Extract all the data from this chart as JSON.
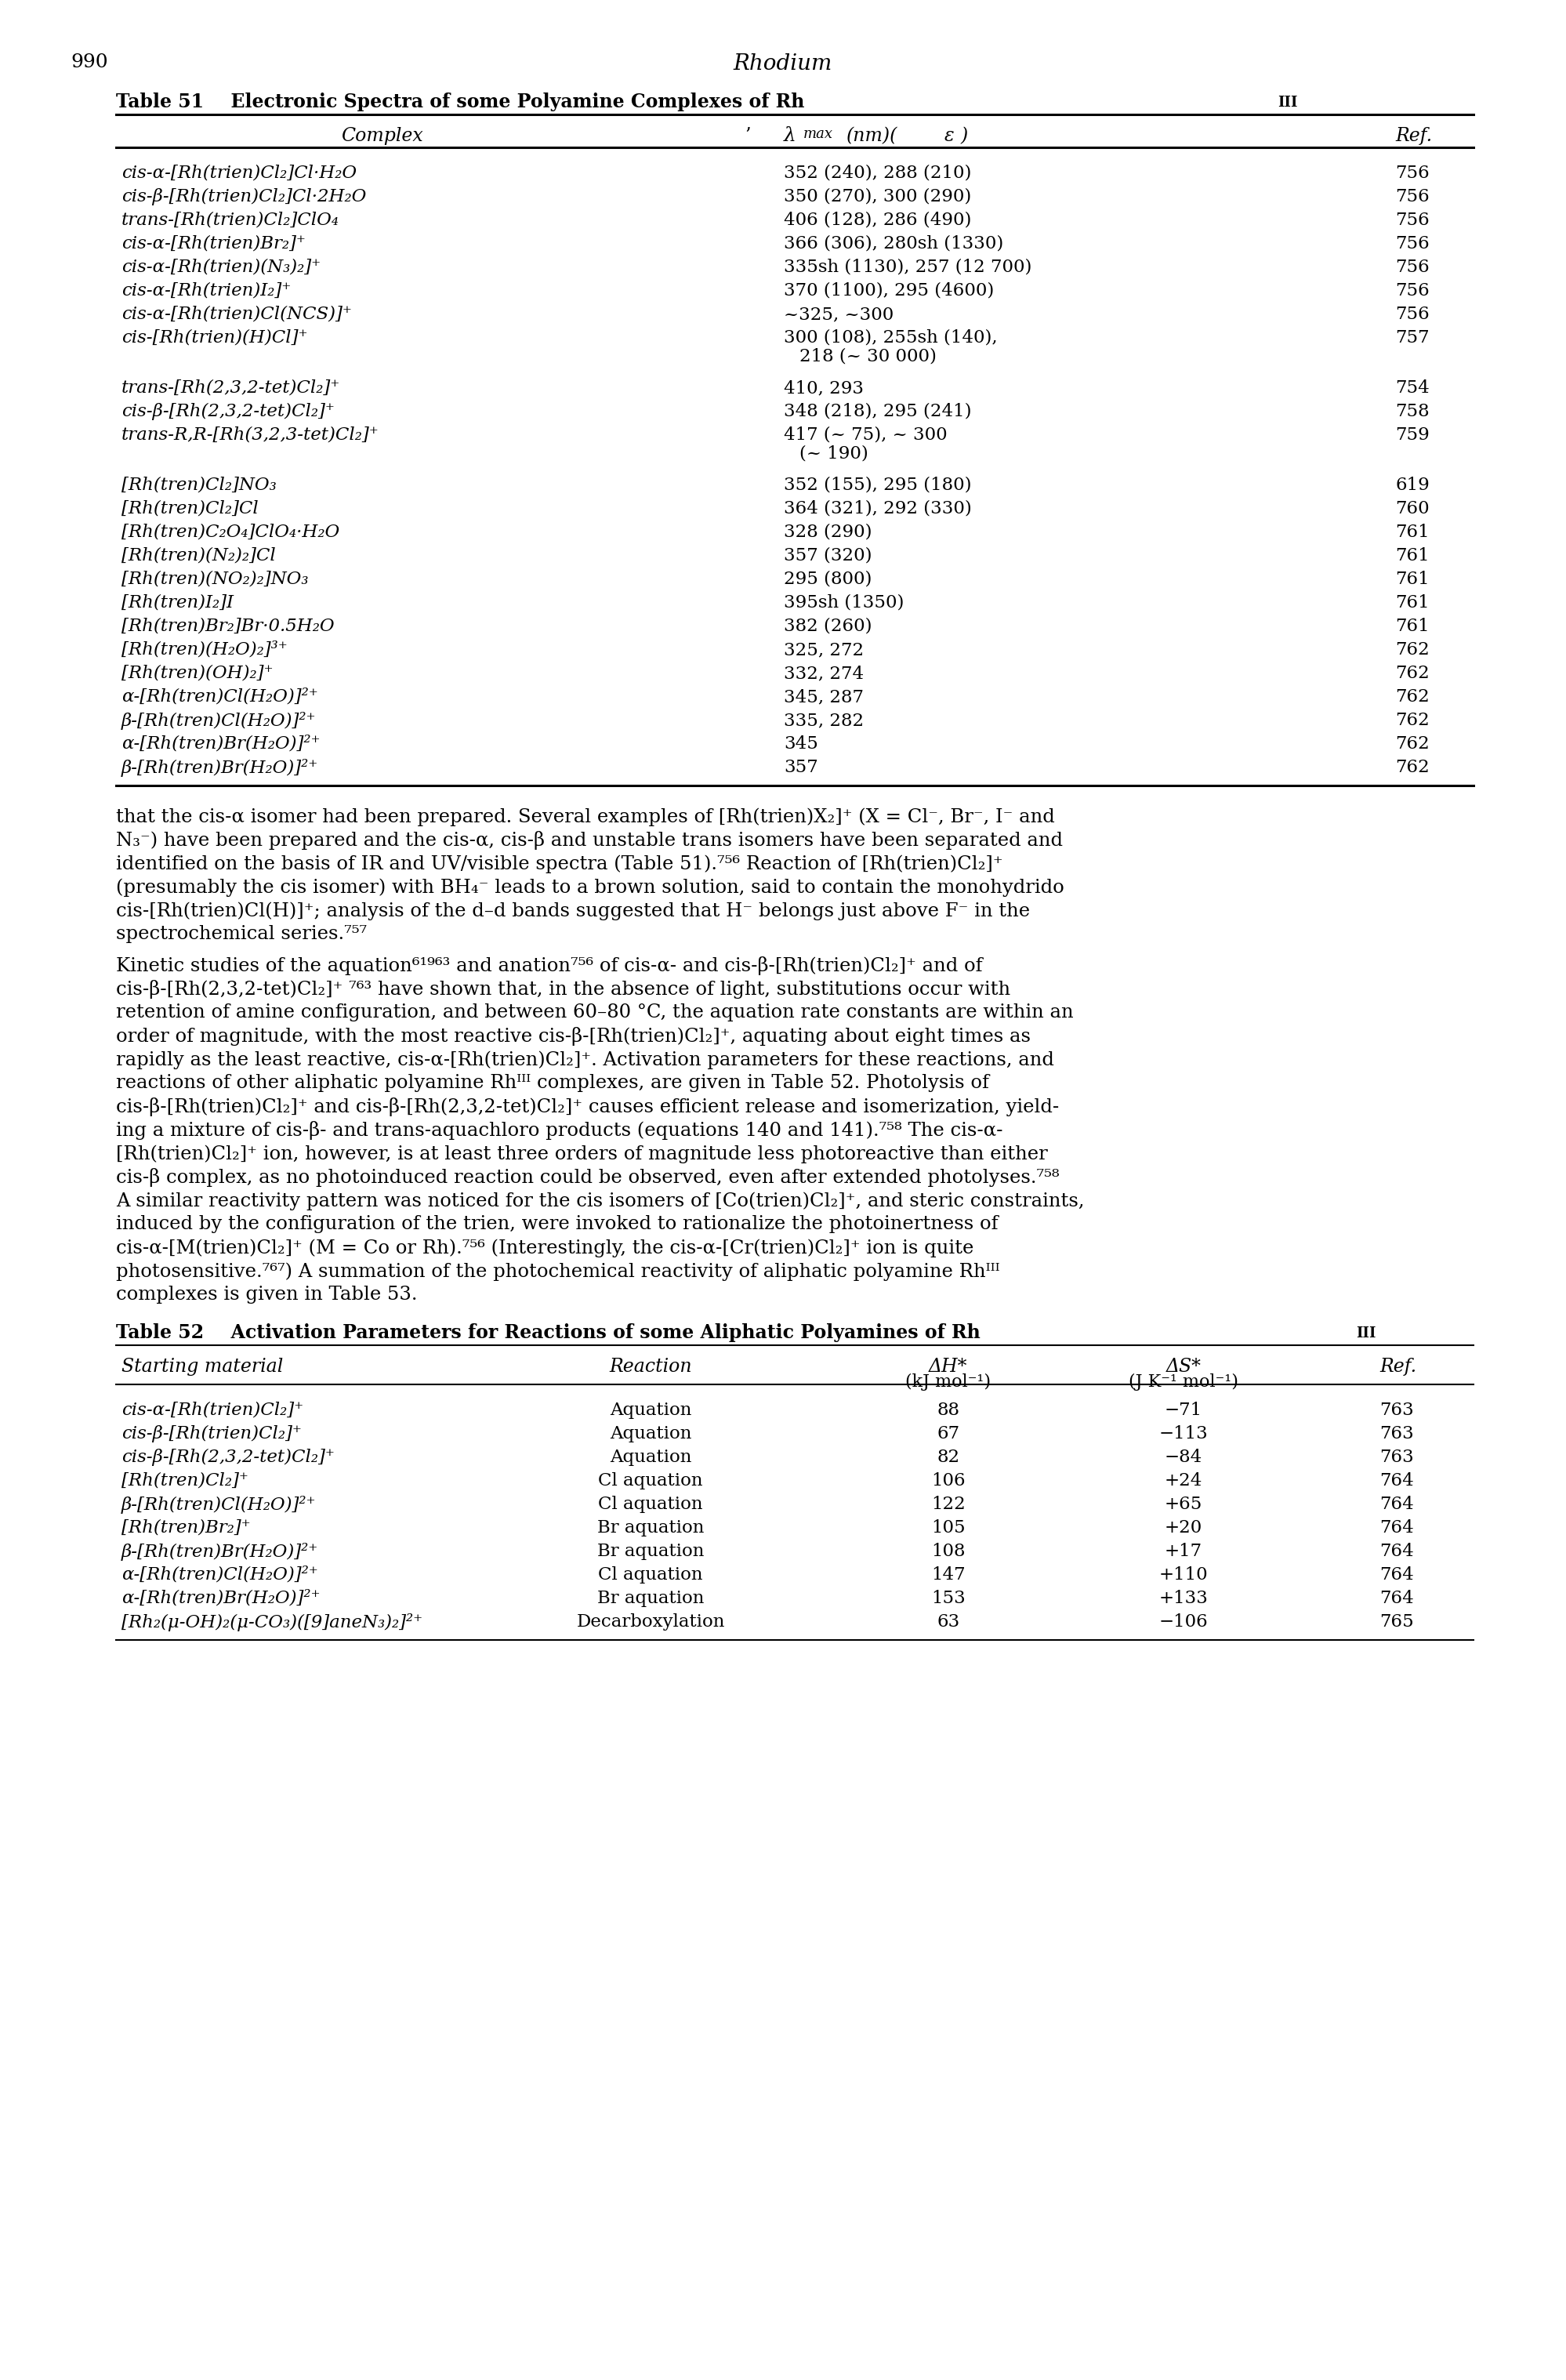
{
  "page_number": "990",
  "page_title": "Rhodium",
  "table51_rows": [
    [
      "cis-α-[Rh(trien)Cl₂]Cl·H₂O",
      "352 (240), 288 (210)",
      "756"
    ],
    [
      "cis-β-[Rh(trien)Cl₂]Cl·2H₂O",
      "350 (270), 300 (290)",
      "756"
    ],
    [
      "trans-[Rh(trien)Cl₂]ClO₄",
      "406 (128), 286 (490)",
      "756"
    ],
    [
      "cis-α-[Rh(trien)Br₂]⁺",
      "366 (306), 280sh (1330)",
      "756"
    ],
    [
      "cis-α-[Rh(trien)(N₃)₂]⁺",
      "335sh (1130), 257 (12 700)",
      "756"
    ],
    [
      "cis-α-[Rh(trien)I₂]⁺",
      "370 (1100), 295 (4600)",
      "756"
    ],
    [
      "cis-α-[Rh(trien)Cl(NCS)]⁺",
      "~325, ~300",
      "756"
    ],
    [
      "cis-[Rh(trien)(H)Cl]⁺",
      "300 (108), 255sh (140),\n218 (~ 30 000)",
      "757"
    ],
    [
      "trans-[Rh(2,3,2-tet)Cl₂]⁺",
      "410, 293",
      "754"
    ],
    [
      "cis-β-[Rh(2,3,2-tet)Cl₂]⁺",
      "348 (218), 295 (241)",
      "758"
    ],
    [
      "trans-R,R-[Rh(3,2,3-tet)Cl₂]⁺",
      "417 (~ 75), ~ 300\n(~ 190)",
      "759"
    ],
    [
      "[Rh(tren)Cl₂]NO₃",
      "352 (155), 295 (180)",
      "619"
    ],
    [
      "[Rh(tren)Cl₂]Cl",
      "364 (321), 292 (330)",
      "760"
    ],
    [
      "[Rh(tren)C₂O₄]ClO₄·H₂O",
      "328 (290)",
      "761"
    ],
    [
      "[Rh(tren)(N₂)₂]Cl",
      "357 (320)",
      "761"
    ],
    [
      "[Rh(tren)(NO₂)₂]NO₃",
      "295 (800)",
      "761"
    ],
    [
      "[Rh(tren)I₂]I",
      "395sh (1350)",
      "761"
    ],
    [
      "[Rh(tren)Br₂]Br·0.5H₂O",
      "382 (260)",
      "761"
    ],
    [
      "[Rh(tren)(H₂O)₂]³⁺",
      "325, 272",
      "762"
    ],
    [
      "[Rh(tren)(OH)₂]⁺",
      "332, 274",
      "762"
    ],
    [
      "α-[Rh(tren)Cl(H₂O)]²⁺",
      "345, 287",
      "762"
    ],
    [
      "β-[Rh(tren)Cl(H₂O)]²⁺",
      "335, 282",
      "762"
    ],
    [
      "α-[Rh(tren)Br(H₂O)]²⁺",
      "345",
      "762"
    ],
    [
      "β-[Rh(tren)Br(H₂O)]²⁺",
      "357",
      "762"
    ]
  ],
  "body_text1": [
    "that the cis-α isomer had been prepared. Several examples of [Rh(trien)X₂]⁺ (X = Cl⁻, Br⁻, I⁻ and",
    "N₃⁻) have been prepared and the cis-α, cis-β and unstable trans isomers have been separated and",
    "identified on the basis of IR and UV/visible spectra (Table 51).⁷⁵⁶ Reaction of [Rh(trien)Cl₂]⁺",
    "(presumably the cis isomer) with BH₄⁻ leads to a brown solution, said to contain the monohydrido",
    "cis-[Rh(trien)Cl(H)]⁺; analysis of the d–d bands suggested that H⁻ belongs just above F⁻ in the",
    "spectrochemical series.⁷⁵⁷"
  ],
  "body_text2": [
    "Kinetic studies of the aquation⁶¹⁹⁶³ and anation⁷⁵⁶ of cis-α- and cis-β-[Rh(trien)Cl₂]⁺ and of",
    "cis-β-[Rh(2,3,2-tet)Cl₂]⁺ ⁷⁶³ have shown that, in the absence of light, substitutions occur with",
    "retention of amine configuration, and between 60–80 °C, the aquation rate constants are within an",
    "order of magnitude, with the most reactive cis-β-[Rh(trien)Cl₂]⁺, aquating about eight times as",
    "rapidly as the least reactive, cis-α-[Rh(trien)Cl₂]⁺. Activation parameters for these reactions, and",
    "reactions of other aliphatic polyamine Rhᴵᴵᴵ complexes, are given in Table 52. Photolysis of",
    "cis-β-[Rh(trien)Cl₂]⁺ and cis-β-[Rh(2,3,2-tet)Cl₂]⁺ causes efficient release and isomerization, yield-",
    "ing a mixture of cis-β- and trans-aquachloro products (equations 140 and 141).⁷⁵⁸ The cis-α-",
    "[Rh(trien)Cl₂]⁺ ion, however, is at least three orders of magnitude less photoreactive than either",
    "cis-β complex, as no photoinduced reaction could be observed, even after extended photolyses.⁷⁵⁸",
    "A similar reactivity pattern was noticed for the cis isomers of [Co(trien)Cl₂]⁺, and steric constraints,",
    "induced by the configuration of the trien, were invoked to rationalize the photoinertness of",
    "cis-α-[M(trien)Cl₂]⁺ (M = Co or Rh).⁷⁵⁶ (Interestingly, the cis-α-[Cr(trien)Cl₂]⁺ ion is quite",
    "photosensitive.⁷⁶⁷) A summation of the photochemical reactivity of aliphatic polyamine Rhᴵᴵᴵ",
    "complexes is given in Table 53."
  ],
  "table52_rows": [
    [
      "cis-α-[Rh(trien)Cl₂]⁺",
      "Aquation",
      "88",
      "−71",
      "763"
    ],
    [
      "cis-β-[Rh(trien)Cl₂]⁺",
      "Aquation",
      "67",
      "−113",
      "763"
    ],
    [
      "cis-β-[Rh(2,3,2-tet)Cl₂]⁺",
      "Aquation",
      "82",
      "−84",
      "763"
    ],
    [
      "[Rh(tren)Cl₂]⁺",
      "Cl aquation",
      "106",
      "+24",
      "764"
    ],
    [
      "β-[Rh(tren)Cl(H₂O)]²⁺",
      "Cl aquation",
      "122",
      "+65",
      "764"
    ],
    [
      "[Rh(tren)Br₂]⁺",
      "Br aquation",
      "105",
      "+20",
      "764"
    ],
    [
      "β-[Rh(tren)Br(H₂O)]²⁺",
      "Br aquation",
      "108",
      "+17",
      "764"
    ],
    [
      "α-[Rh(tren)Cl(H₂O)]²⁺",
      "Cl aquation",
      "147",
      "+110",
      "764"
    ],
    [
      "α-[Rh(tren)Br(H₂O)]²⁺",
      "Br aquation",
      "153",
      "+133",
      "764"
    ],
    [
      "[Rh₂(μ-OH)₂(μ-CO₃)([9]aneN₃)₂]²⁺",
      "Decarboxylation",
      "63",
      "−106",
      "765"
    ]
  ]
}
